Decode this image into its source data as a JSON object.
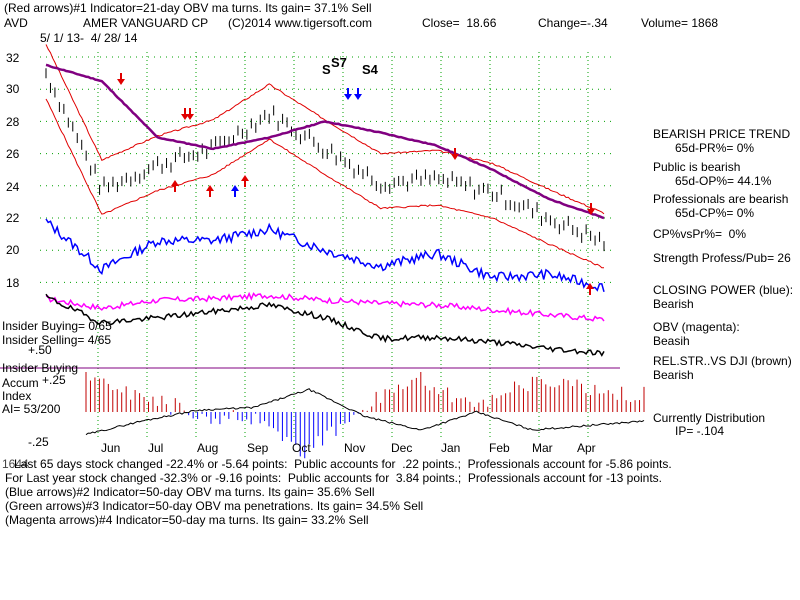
{
  "header": {
    "line1": "(Red arrows)#1 Indicator=21-day OBV ma turns. Its gain= 37.1% Sell",
    "symbol": "AVD",
    "company": "AMER VANGUARD CP",
    "copyright": "(C)2014 www.tigersoft.com",
    "close": "Close=  18.66",
    "change": "Change=-.34",
    "volume": "Volume= 1868",
    "daterange": "5/ 1/ 13-  4/ 28/ 14"
  },
  "signals": {
    "s7": "S7",
    "s4": "S4",
    "s_left": "S"
  },
  "price_axis": {
    "ticks": [
      "32",
      "30",
      "28",
      "26",
      "24",
      "22",
      "20",
      "18"
    ]
  },
  "months": [
    "Jun",
    "Jul",
    "Aug",
    "Sep",
    "Oct",
    "Nov",
    "Dec",
    "Jan",
    "Feb",
    "Mar",
    "Apr"
  ],
  "insider": {
    "buying": "Insider Buying= 0/65",
    "selling": "Insider Selling= 4/65",
    "plus50": "+.50",
    "label_buying": "Insider Buying",
    "accum": "Accum",
    "plus25": "+.25",
    "index": "Index",
    "ai": "AI= 53/200",
    "minus25": "-.25"
  },
  "sidebar": {
    "trend_title": "BEARISH PRICE TREND",
    "pr": "65d-PR%= 0%",
    "public": "Public is bearish",
    "op": "65d-OP%= 44.1%",
    "professionals": "Professionals are bearish",
    "cp": "65d-CP%= 0%",
    "cpvspr": "CP%vsPr%=  0%",
    "strength": "Strength Profess/Pub= 26",
    "closing_power": "CLOSING POWER (blue):",
    "closing_power_val": "Bearish",
    "obv": "OBV (magenta):",
    "obv_val": "Beasih",
    "relstr": "REL.STR..VS DJI (brown)",
    "relstr_val": "Bearish",
    "distribution": "Currently Distribution",
    "ip": "IP= -.104"
  },
  "footer": {
    "overlap": "1644",
    "line1": "Last 65 days stock changed -22.4% or -5.64 points:  Public accounts for  .22 points.;  Professionals account for -5.86 points.",
    "line2": "For Last year stock changed -32.3% or -9.16 points:  Public accounts for  3.84 points.;  Professionals account for -13 points.",
    "line3": "(Blue arrows)#2 Indicator=50-day OBV ma turns. Its gain= 35.6% Sell",
    "line4": "(Green arrows)#3 Indicator=50-day OBV ma penetrations. Its gain= 34.5% Sell",
    "line5": "(Magenta arrows)#4 Indicator=50-day ma turns. Its gain= 33.2% Sell"
  },
  "colors": {
    "price": "#000000",
    "band": "#e00000",
    "ma50": "#800080",
    "closing_power": "#0000ff",
    "obv": "#ff00ff",
    "relstr": "#000000",
    "accum_pos": "#0000ff",
    "accum_neg": "#c00000",
    "grid": "#00a000",
    "insider_line": "#800080"
  },
  "chart_data": {
    "type": "line",
    "title": "AMER VANGUARD CP",
    "xlabel": "",
    "ylabel": "",
    "x": [
      "Jun",
      "Jul",
      "Aug",
      "Sep",
      "Oct",
      "Nov",
      "Dec",
      "Jan",
      "Feb",
      "Mar",
      "Apr"
    ],
    "ylim": [
      17,
      32.5
    ],
    "series": [
      {
        "values": [
          31.0,
          23.8,
          25.3,
          26.3,
          28.5,
          26.3,
          24.2,
          24.4,
          23.6,
          22.0,
          20.5
        ]
      },
      {
        "values": [
          31.5,
          30.5,
          27.0,
          26.3,
          27.0,
          28.0,
          27.3,
          26.5,
          25.0,
          23.2,
          22.0
        ]
      }
    ],
    "indicators": {
      "closing_power": [
        21.8,
        18.8,
        20.6,
        20.6,
        21.3,
        20.0,
        19.0,
        19.8,
        18.3,
        18.5,
        17.7
      ],
      "accum_index": [
        -0.25,
        -0.1,
        0.02,
        0.05,
        0.25,
        -0.05,
        -0.2,
        0.0,
        -0.2,
        -0.15,
        -0.1
      ]
    }
  }
}
